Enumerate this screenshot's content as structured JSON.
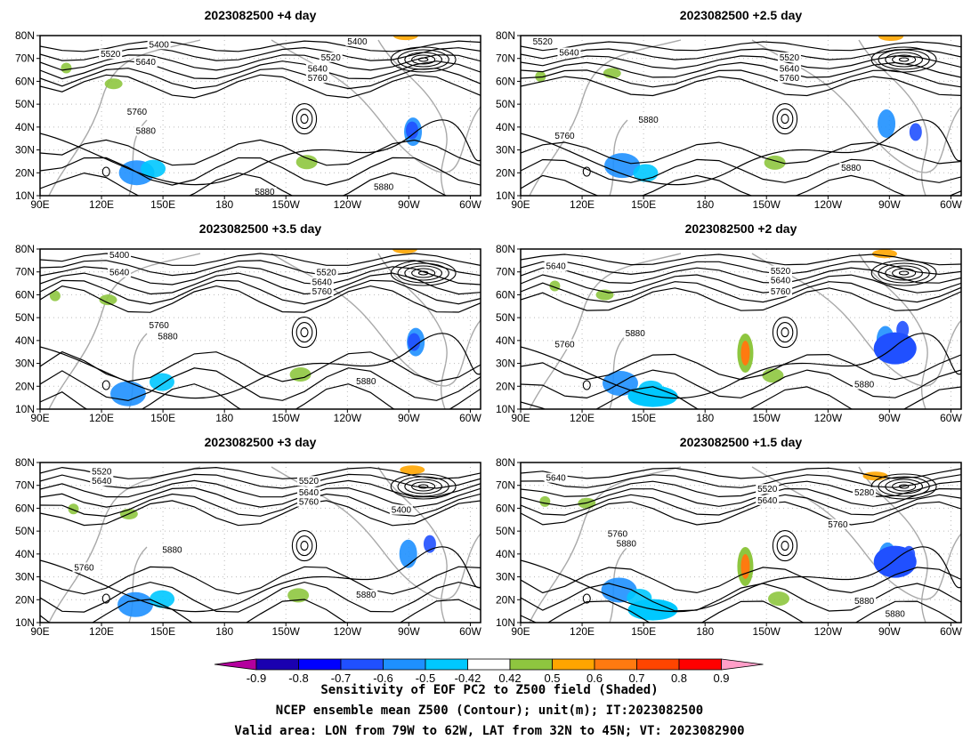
{
  "panels": [
    {
      "title": "2023082500 +4 day",
      "contour_labels": [
        "5400",
        "5520",
        "5640",
        "5400",
        "5520",
        "5640",
        "5760",
        "5760",
        "5880",
        "5880",
        "5880"
      ]
    },
    {
      "title": "2023082500 +2.5 day",
      "contour_labels": [
        "5520",
        "5640",
        "5520",
        "5640",
        "5760",
        "5880",
        "5760",
        "5880"
      ]
    },
    {
      "title": "2023082500 +3.5 day",
      "contour_labels": [
        "5400",
        "5640",
        "5520",
        "5640",
        "5760",
        "5760",
        "5880",
        "5880"
      ]
    },
    {
      "title": "2023082500 +2 day",
      "contour_labels": [
        "5640",
        "5520",
        "5640",
        "5760",
        "5760",
        "5880",
        "5880"
      ]
    },
    {
      "title": "2023082500 +3 day",
      "contour_labels": [
        "5520",
        "5640",
        "5520",
        "5640",
        "5760",
        "5400",
        "5880",
        "5760",
        "5880"
      ]
    },
    {
      "title": "2023082500 +1.5 day",
      "contour_labels": [
        "5640",
        "5520",
        "5640",
        "5280",
        "5760",
        "5760",
        "5880",
        "5880",
        "5880"
      ]
    }
  ],
  "axes": {
    "lat_labels": [
      "80N",
      "70N",
      "60N",
      "50N",
      "40N",
      "30N",
      "20N",
      "10N"
    ],
    "lon_labels": [
      "90E",
      "120E",
      "150E",
      "180",
      "150W",
      "120W",
      "90W",
      "60W"
    ]
  },
  "colorbar": {
    "labels": [
      "-0.9",
      "-0.8",
      "-0.7",
      "-0.6",
      "-0.5",
      "-0.42",
      "0.42",
      "0.5",
      "0.6",
      "0.7",
      "0.8",
      "0.9"
    ],
    "colors": [
      "#b4009e",
      "#1a00b0",
      "#0000ff",
      "#2050ff",
      "#1e90ff",
      "#00c8ff",
      "#ffffff",
      "#8ec63f",
      "#ffa500",
      "#ff7a10",
      "#ff4500",
      "#ff0000",
      "#ff9ec8"
    ]
  },
  "caption": [
    "Sensitivity of EOF PC2 to Z500 field (Shaded)",
    "NCEP ensemble mean Z500 (Contour); unit(m); IT:2023082500",
    "Valid area: LON from 79W to 62W, LAT from 32N to 45N; VT: 2023082900"
  ]
}
